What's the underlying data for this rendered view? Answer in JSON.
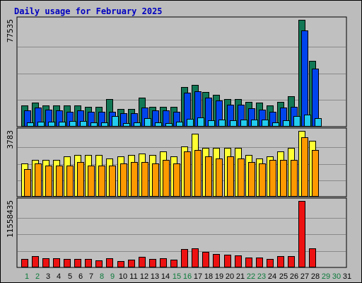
{
  "chart_data": {
    "type": "bar",
    "title": "Daily usage for February 2025",
    "categories": [
      "1",
      "2",
      "3",
      "4",
      "5",
      "6",
      "7",
      "8",
      "9",
      "10",
      "11",
      "12",
      "13",
      "14",
      "15",
      "16",
      "17",
      "18",
      "19",
      "20",
      "21",
      "22",
      "23",
      "24",
      "25",
      "26",
      "27",
      "28",
      "29",
      "30",
      "31"
    ],
    "weekend_days": [
      "1",
      "2",
      "8",
      "9",
      "15",
      "16",
      "22",
      "23",
      "29",
      "30"
    ],
    "panels": [
      {
        "ylabel": "77535",
        "ymax": 77535,
        "series": [
          {
            "color": "#117755",
            "values": [
              15500,
              17600,
              15200,
              15200,
              15500,
              15600,
              14200,
              14200,
              19800,
              13000,
              13000,
              21200,
              14200,
              14200,
              14200,
              28700,
              30400,
              25000,
              23000,
              20000,
              20000,
              18000,
              17600,
              15500,
              17800,
              22000,
              77535,
              48000,
              0,
              0,
              0
            ]
          },
          {
            "color": "#0044ee",
            "values": [
              11800,
              13800,
              12200,
              11800,
              10800,
              11800,
              11000,
              10800,
              11000,
              10000,
              10000,
              13800,
              12000,
              11800,
              11000,
              24400,
              25800,
              21200,
              19200,
              15800,
              15800,
              13400,
              12400,
              11000,
              14000,
              14200,
              70000,
              42000,
              0,
              0,
              0
            ]
          },
          {
            "color": "#22ccee",
            "values": [
              3200,
              3700,
              3700,
              3500,
              4000,
              4000,
              3200,
              3200,
              7500,
              2700,
              3300,
              6000,
              3300,
              2500,
              3700,
              5700,
              6700,
              4700,
              5000,
              4500,
              5000,
              5000,
              5000,
              3200,
              4500,
              7900,
              8500,
              6000,
              0,
              0,
              0
            ]
          }
        ]
      },
      {
        "ylabel": "3783",
        "ymax": 3783,
        "series": [
          {
            "color": "#ffff33",
            "values": [
              1900,
              2100,
              2100,
              2100,
              2300,
              2400,
              2400,
              2400,
              2200,
              2300,
              2400,
              2500,
              2400,
              2600,
              2300,
              2900,
              3600,
              2800,
              2800,
              2800,
              2800,
              2400,
              2200,
              2300,
              2600,
              2800,
              3783,
              3200,
              0,
              0,
              0
            ]
          },
          {
            "color": "#ff9900",
            "values": [
              1600,
              1900,
              1800,
              1800,
              1800,
              2000,
              1800,
              1800,
              1800,
              1900,
              2000,
              2000,
              1900,
              2100,
              1900,
              2600,
              2700,
              2300,
              2200,
              2300,
              2200,
              2000,
              1900,
              2100,
              2100,
              2100,
              3400,
              2700,
              0,
              0,
              0
            ]
          }
        ]
      },
      {
        "ylabel": "11558435",
        "ymax": 11558435,
        "series": [
          {
            "color": "#ee1111",
            "values": [
              1500000,
              1950000,
              1650000,
              1650000,
              1500000,
              1500000,
              1450000,
              1250000,
              1650000,
              1150000,
              1400000,
              1850000,
              1500000,
              1600000,
              1350000,
              3150000,
              3300000,
              2700000,
              2300000,
              2200000,
              2050000,
              1750000,
              1700000,
              1500000,
              1950000,
              2000000,
              11558435,
              3300000,
              0,
              0,
              0
            ]
          }
        ]
      }
    ]
  }
}
